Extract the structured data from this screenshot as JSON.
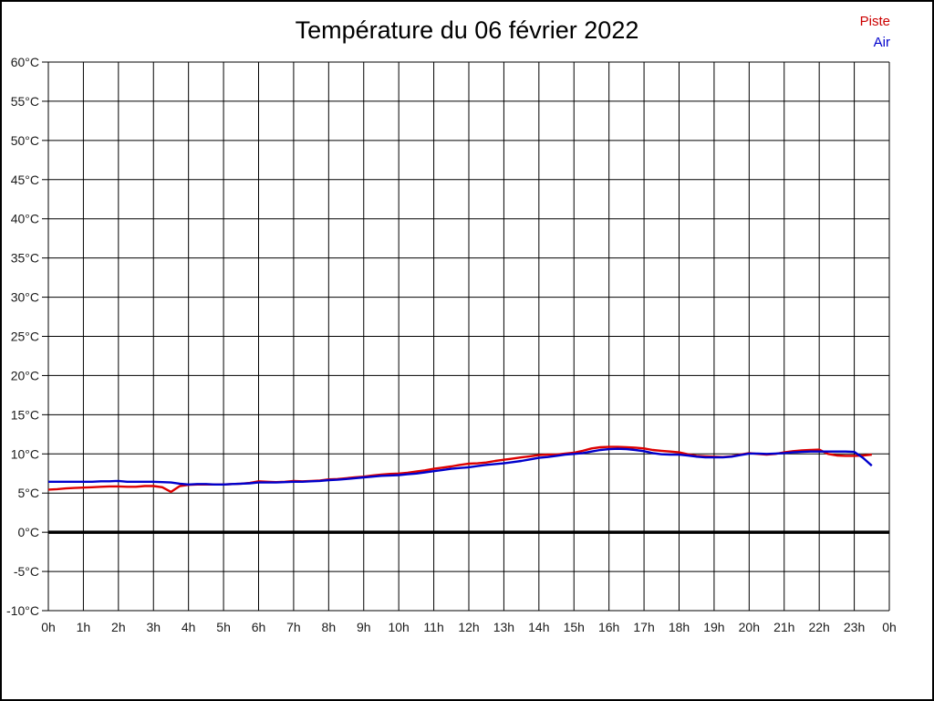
{
  "page": {
    "title": "Température du 06 février 2022"
  },
  "legend": {
    "piste_label": "Piste",
    "air_label": "Air",
    "piste_color": "#cc0000",
    "air_color": "#0000cc"
  },
  "chart_data": {
    "type": "line",
    "title": "Température du 06 février 2022",
    "xlabel": "",
    "ylabel": "",
    "x_axis": {
      "min": 0,
      "max": 24,
      "tick_step_hours": 1,
      "tick_labels": [
        "0h",
        "1h",
        "2h",
        "3h",
        "4h",
        "5h",
        "6h",
        "7h",
        "8h",
        "9h",
        "10h",
        "11h",
        "12h",
        "13h",
        "14h",
        "15h",
        "16h",
        "17h",
        "18h",
        "19h",
        "20h",
        "21h",
        "22h",
        "23h",
        "0h"
      ]
    },
    "y_axis": {
      "min": -10,
      "max": 60,
      "tick_step": 5,
      "unit": "°C",
      "tick_labels": [
        "60°C",
        "55°C",
        "50°C",
        "45°C",
        "40°C",
        "35°C",
        "30°C",
        "25°C",
        "20°C",
        "15°C",
        "10°C",
        "5°C",
        "0°C",
        "-5°C",
        "-10°C"
      ]
    },
    "grid": true,
    "zero_line": 0,
    "legend_position": "top-right",
    "series": [
      {
        "name": "Piste",
        "color": "#dd0000",
        "x_start": 0,
        "x_step": 0.25,
        "values": [
          5.45,
          5.5,
          5.6,
          5.65,
          5.7,
          5.75,
          5.8,
          5.85,
          5.85,
          5.8,
          5.8,
          5.9,
          5.9,
          5.75,
          5.15,
          5.9,
          6.05,
          6.1,
          6.1,
          6.1,
          6.1,
          6.15,
          6.2,
          6.3,
          6.5,
          6.45,
          6.4,
          6.45,
          6.55,
          6.5,
          6.55,
          6.6,
          6.75,
          6.8,
          6.9,
          7.0,
          7.1,
          7.25,
          7.35,
          7.45,
          7.5,
          7.6,
          7.75,
          7.9,
          8.1,
          8.25,
          8.4,
          8.6,
          8.75,
          8.8,
          8.9,
          9.1,
          9.25,
          9.4,
          9.55,
          9.7,
          9.85,
          9.9,
          9.9,
          10.05,
          10.15,
          10.4,
          10.7,
          10.85,
          10.9,
          10.9,
          10.85,
          10.8,
          10.7,
          10.5,
          10.4,
          10.3,
          10.2,
          9.95,
          9.75,
          9.7,
          9.65,
          9.6,
          9.7,
          9.9,
          10.1,
          10.0,
          9.9,
          10.0,
          10.2,
          10.35,
          10.45,
          10.5,
          10.55,
          10.0,
          9.8,
          9.75,
          9.75,
          9.8,
          9.9
        ]
      },
      {
        "name": "Air",
        "color": "#0000cc",
        "x_start": 0,
        "x_step": 0.25,
        "values": [
          6.45,
          6.45,
          6.45,
          6.45,
          6.45,
          6.45,
          6.5,
          6.5,
          6.55,
          6.45,
          6.45,
          6.45,
          6.45,
          6.4,
          6.35,
          6.2,
          6.1,
          6.15,
          6.15,
          6.1,
          6.1,
          6.15,
          6.2,
          6.25,
          6.35,
          6.35,
          6.35,
          6.4,
          6.45,
          6.45,
          6.5,
          6.55,
          6.65,
          6.7,
          6.8,
          6.9,
          7.0,
          7.1,
          7.2,
          7.25,
          7.3,
          7.4,
          7.5,
          7.65,
          7.8,
          7.95,
          8.1,
          8.2,
          8.3,
          8.45,
          8.6,
          8.7,
          8.8,
          8.95,
          9.1,
          9.3,
          9.5,
          9.6,
          9.75,
          9.9,
          10.0,
          10.1,
          10.3,
          10.5,
          10.6,
          10.65,
          10.6,
          10.5,
          10.35,
          10.1,
          9.95,
          9.9,
          9.9,
          9.8,
          9.65,
          9.55,
          9.55,
          9.55,
          9.65,
          9.85,
          10.05,
          10.05,
          10.0,
          10.05,
          10.1,
          10.2,
          10.25,
          10.3,
          10.3,
          10.3,
          10.3,
          10.3,
          10.25,
          9.5,
          8.5
        ]
      }
    ]
  }
}
